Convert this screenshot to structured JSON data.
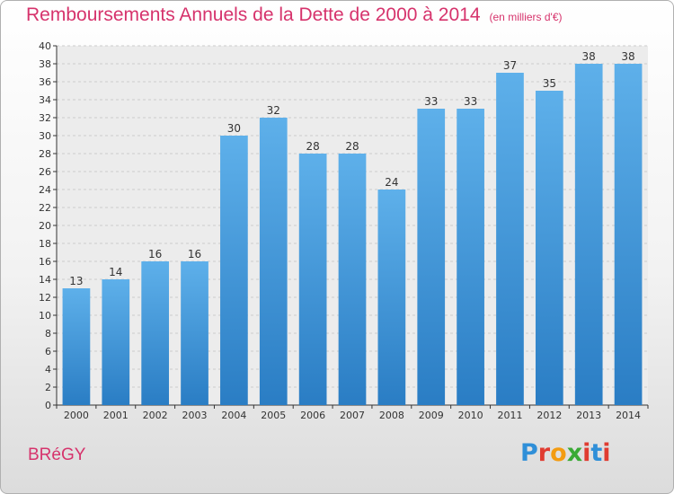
{
  "chart_data": {
    "type": "bar",
    "title": "Remboursements Annuels de la Dette de 2000 à 2014",
    "subtitle": "(en milliers d'€)",
    "categories": [
      "2000",
      "2001",
      "2002",
      "2003",
      "2004",
      "2005",
      "2006",
      "2007",
      "2008",
      "2009",
      "2010",
      "2011",
      "2012",
      "2013",
      "2014"
    ],
    "values": [
      13,
      14,
      16,
      16,
      30,
      32,
      28,
      28,
      24,
      33,
      33,
      37,
      35,
      38,
      38
    ],
    "xlabel": "",
    "ylabel": "",
    "ylim": [
      0,
      40
    ],
    "yticks": [
      0,
      2,
      4,
      6,
      8,
      10,
      12,
      14,
      16,
      18,
      20,
      22,
      24,
      26,
      28,
      30,
      32,
      34,
      36,
      38,
      40
    ],
    "grid": true,
    "bar_color": "#4a9ee0"
  },
  "footer": {
    "place": "BRéGY",
    "logo_text": "Proxiti",
    "logo_colors": [
      "#2f8fd8",
      "#e03c31",
      "#f39c12",
      "#3aaa35",
      "#e03c31",
      "#2f8fd8",
      "#e03c31"
    ]
  },
  "colors": {
    "title": "#d6336c",
    "axis": "#333333",
    "grid": "#cccccc"
  }
}
